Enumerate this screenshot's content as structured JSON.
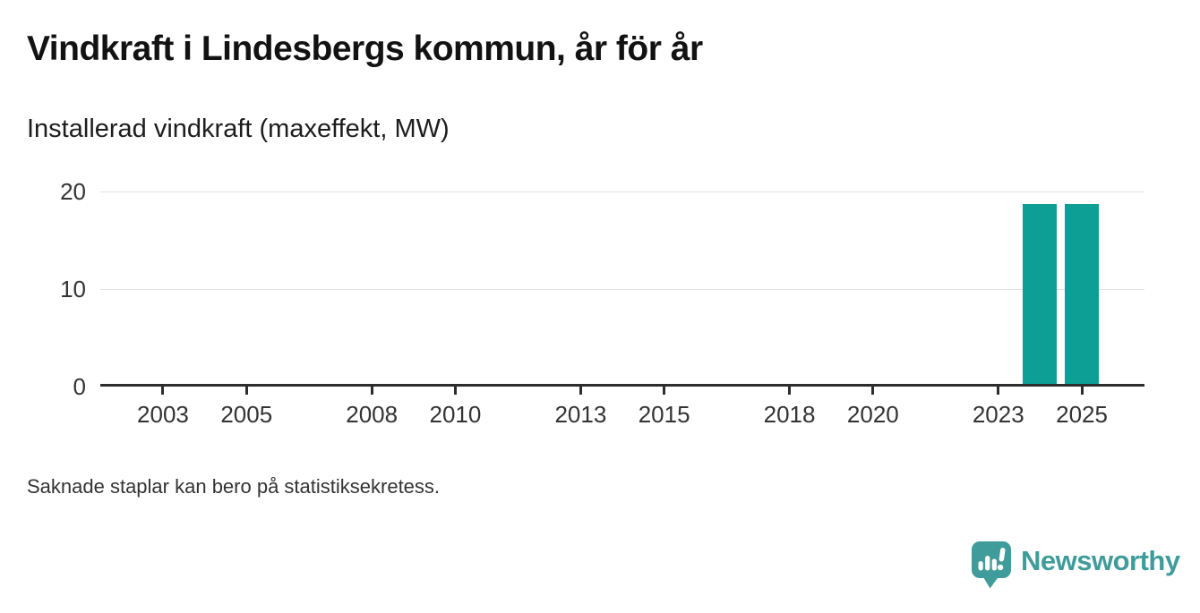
{
  "chart_data": {
    "type": "bar",
    "title": "Vindkraft i Lindesbergs kommun, år för år",
    "subtitle": "Installerad vindkraft (maxeffekt, MW)",
    "unit": "MW",
    "x": [
      2024,
      2025
    ],
    "values": [
      18.7,
      18.7
    ],
    "x_domain": [
      2002,
      2026
    ],
    "x_ticks": [
      2003,
      2005,
      2008,
      2010,
      2013,
      2015,
      2018,
      2020,
      2023,
      2025
    ],
    "y_ticks": [
      0,
      10,
      20
    ],
    "ylim": [
      0,
      20
    ],
    "grid": "horizontal-only",
    "legend": "none",
    "note": "Saknade staplar kan bero på statistiksekretess."
  },
  "branding": {
    "name": "Newsworthy",
    "logo_icon": "bar-chart-speech-bubble-icon"
  },
  "colors": {
    "bar": "#0d9e96",
    "brand": "#3f9c9a",
    "axis": "#2d2d2d",
    "grid": "#e2e2e2",
    "tick_text": "#333333"
  }
}
